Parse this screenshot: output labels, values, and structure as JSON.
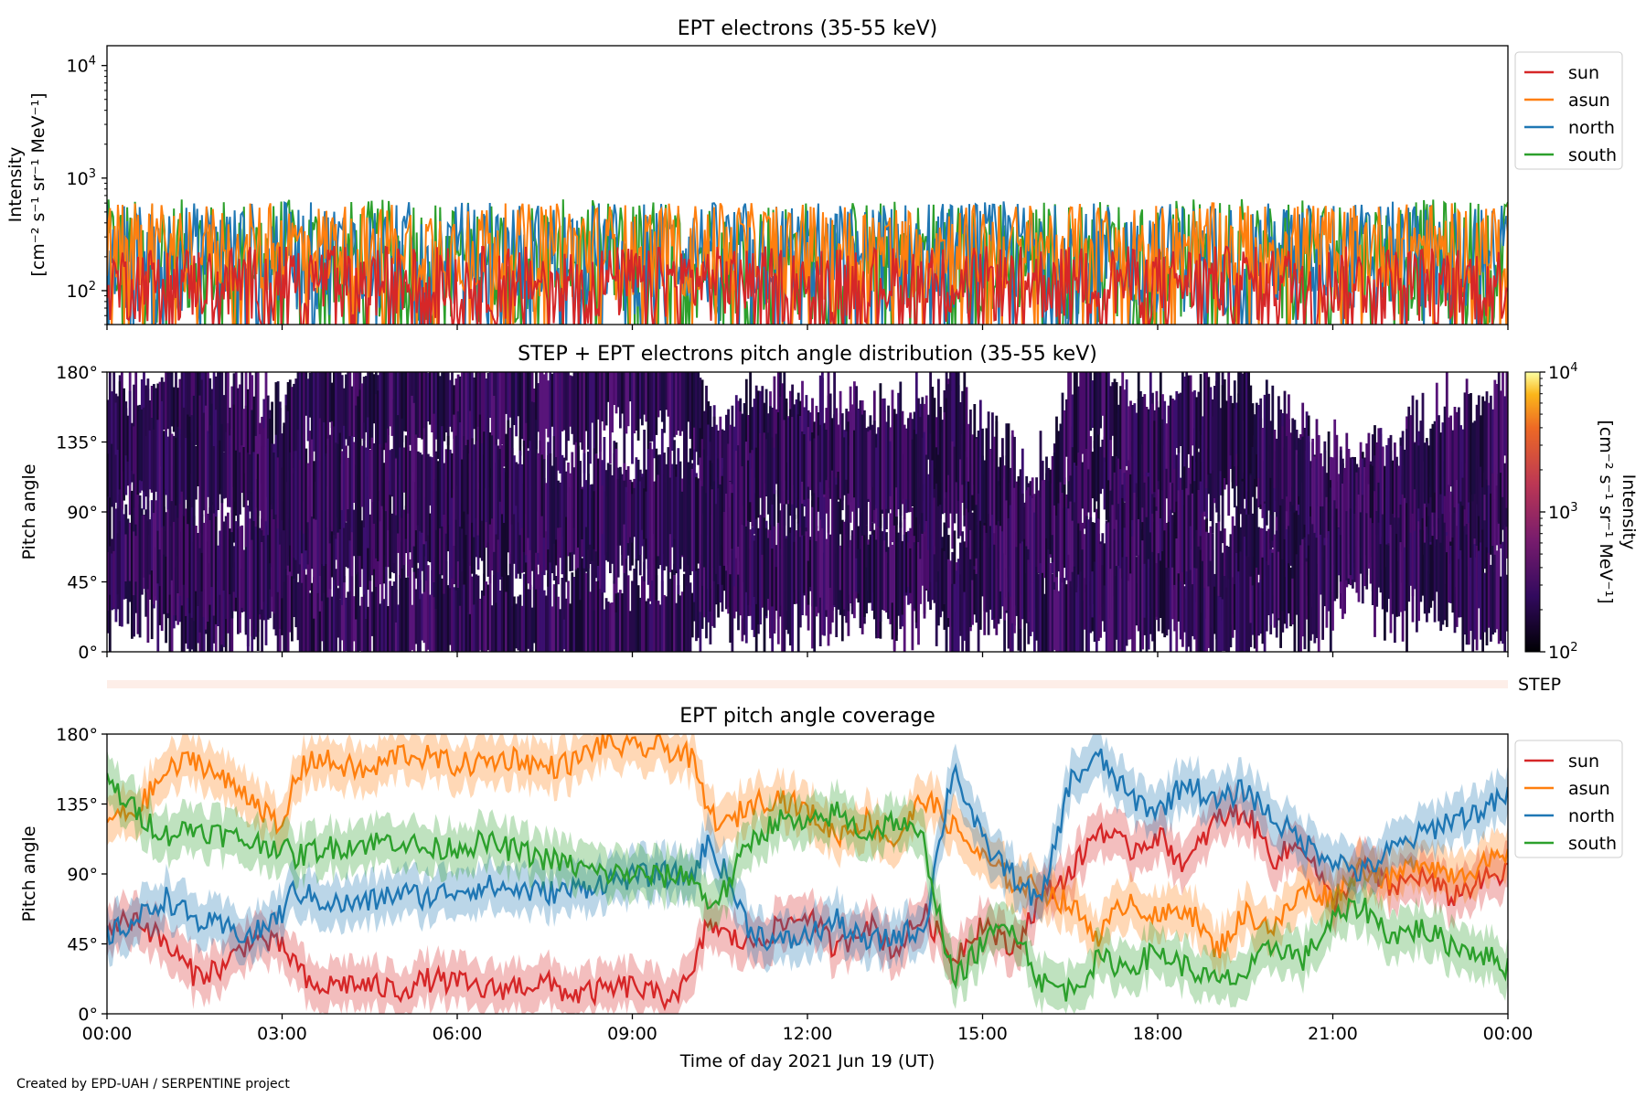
{
  "footer": {
    "credit": "Created by EPD-UAH / SERPENTINE project"
  },
  "xaxis": {
    "label": "Time of day 2021 Jun 19 (UT)",
    "tick_labels": [
      "00:00",
      "03:00",
      "06:00",
      "09:00",
      "12:00",
      "15:00",
      "18:00",
      "21:00",
      "00:00"
    ],
    "range_hours": [
      0,
      24
    ]
  },
  "colors": {
    "sun": "#d62728",
    "asun": "#ff7f0e",
    "north": "#1f77b4",
    "south": "#2ca02c"
  },
  "chart_data": [
    {
      "type": "line",
      "title": "EPT electrons (35-55 keV)",
      "ylabel_line1": "Intensity",
      "ylabel_line2": "[cm⁻² s⁻¹ sr⁻¹ MeV⁻¹]",
      "yscale": "log",
      "ylim": [
        50,
        15000
      ],
      "ytick_values": [
        100,
        1000,
        10000
      ],
      "ytick_labels": [
        {
          "base": "10",
          "exp": "2"
        },
        {
          "base": "10",
          "exp": "3"
        },
        {
          "base": "10",
          "exp": "4"
        }
      ],
      "legend": "outside-top-right",
      "series": [
        {
          "name": "sun",
          "color": "#d62728",
          "typical_range": [
            50,
            250
          ]
        },
        {
          "name": "asun",
          "color": "#ff7f0e",
          "typical_range": [
            80,
            600
          ]
        },
        {
          "name": "north",
          "color": "#1f77b4",
          "typical_range": [
            60,
            620
          ]
        },
        {
          "name": "south",
          "color": "#2ca02c",
          "typical_range": [
            50,
            650
          ]
        }
      ]
    },
    {
      "type": "heatmap",
      "title": "STEP + EPT electrons pitch angle distribution (35-55 keV)",
      "ylabel": "Pitch angle",
      "ylim": [
        0,
        180
      ],
      "ytick_labels": [
        "0°",
        "45°",
        "90°",
        "135°",
        "180°"
      ],
      "colorbar": {
        "label_line1": "Intensity",
        "label_line2": "[cm⁻² s⁻¹ sr⁻¹ MeV⁻¹]",
        "scale": "log",
        "range": [
          100,
          10000
        ],
        "tick_labels": [
          {
            "base": "10",
            "exp": "2"
          },
          {
            "base": "10",
            "exp": "3"
          },
          {
            "base": "10",
            "exp": "4"
          }
        ]
      },
      "step_row_label": "STEP"
    },
    {
      "type": "line",
      "title": "EPT pitch angle coverage",
      "ylabel": "Pitch angle",
      "ylim": [
        0,
        180
      ],
      "ytick_labels": [
        "0°",
        "45°",
        "90°",
        "135°",
        "180°"
      ],
      "legend": "outside-top-right",
      "series": [
        {
          "name": "sun",
          "color": "#d62728",
          "x": [
            0,
            0.5,
            1,
            1.5,
            2,
            2.5,
            3,
            3.2,
            3.5,
            4,
            4.5,
            5,
            5.5,
            6,
            6.5,
            7,
            7.5,
            8,
            8.5,
            9,
            9.5,
            10,
            10.3,
            10.6,
            11,
            11.5,
            12,
            12.5,
            13,
            13.5,
            14,
            14.5,
            15,
            15.5,
            16,
            16.5,
            17,
            17.5,
            18,
            18.5,
            19,
            19.5,
            20,
            20.5,
            21,
            21.5,
            22,
            22.5,
            23,
            23.5,
            24
          ],
          "y": [
            55,
            62,
            45,
            25,
            30,
            50,
            42,
            35,
            15,
            20,
            18,
            15,
            22,
            20,
            15,
            18,
            20,
            12,
            15,
            18,
            10,
            20,
            60,
            50,
            45,
            55,
            65,
            40,
            60,
            40,
            65,
            35,
            60,
            40,
            75,
            90,
            120,
            105,
            115,
            95,
            125,
            130,
            100,
            110,
            70,
            95,
            80,
            90,
            75,
            85,
            90
          ]
        },
        {
          "name": "asun",
          "color": "#ff7f0e",
          "x": [
            0,
            0.5,
            1,
            1.5,
            2,
            2.5,
            3,
            3.2,
            3.5,
            4,
            4.5,
            5,
            5.5,
            6,
            6.5,
            7,
            7.5,
            8,
            8.5,
            9,
            9.5,
            10,
            10.3,
            10.6,
            11,
            11.5,
            12,
            12.5,
            13,
            13.5,
            14,
            14.5,
            15,
            15.5,
            16,
            16.5,
            17,
            17.5,
            18,
            18.5,
            19,
            19.5,
            20,
            20.5,
            21,
            21.5,
            22,
            22.5,
            23,
            23.5,
            24
          ],
          "y": [
            125,
            130,
            155,
            165,
            150,
            140,
            115,
            150,
            165,
            160,
            155,
            168,
            165,
            160,
            162,
            165,
            158,
            162,
            175,
            170,
            172,
            165,
            130,
            120,
            135,
            140,
            130,
            115,
            125,
            110,
            140,
            120,
            100,
            85,
            80,
            70,
            50,
            75,
            60,
            70,
            40,
            65,
            55,
            80,
            75,
            95,
            85,
            100,
            90,
            95,
            100
          ]
        },
        {
          "name": "north",
          "color": "#1f77b4",
          "x": [
            0,
            0.5,
            1,
            1.5,
            2,
            2.5,
            3,
            3.2,
            3.5,
            4,
            4.5,
            5,
            5.5,
            6,
            6.5,
            7,
            7.5,
            8,
            8.5,
            9,
            9.5,
            10,
            10.3,
            10.6,
            11,
            11.5,
            12,
            12.5,
            13,
            13.5,
            14,
            14.5,
            15,
            15.5,
            16,
            16.5,
            17,
            17.5,
            18,
            18.5,
            19,
            19.5,
            20,
            20.5,
            21,
            21.5,
            22,
            22.5,
            23,
            23.5,
            24
          ],
          "y": [
            50,
            60,
            75,
            60,
            55,
            50,
            65,
            80,
            75,
            70,
            72,
            78,
            75,
            80,
            82,
            80,
            78,
            80,
            85,
            88,
            90,
            88,
            110,
            90,
            55,
            45,
            50,
            60,
            45,
            50,
            55,
            160,
            110,
            90,
            70,
            150,
            165,
            140,
            130,
            150,
            135,
            145,
            125,
            110,
            100,
            90,
            105,
            115,
            125,
            130,
            140
          ]
        },
        {
          "name": "south",
          "color": "#2ca02c",
          "x": [
            0,
            0.5,
            1,
            1.5,
            2,
            2.5,
            3,
            3.2,
            3.5,
            4,
            4.5,
            5,
            5.5,
            6,
            6.5,
            7,
            7.5,
            8,
            8.5,
            9,
            9.5,
            10,
            10.3,
            10.6,
            11,
            11.5,
            12,
            12.5,
            13,
            13.5,
            14,
            14.5,
            15,
            15.5,
            16,
            16.5,
            17,
            17.5,
            18,
            18.5,
            19,
            19.5,
            20,
            20.5,
            21,
            21.5,
            22,
            22.5,
            23,
            23.5,
            24
          ],
          "y": [
            150,
            130,
            115,
            120,
            115,
            110,
            108,
            100,
            105,
            108,
            110,
            112,
            105,
            108,
            110,
            105,
            100,
            95,
            90,
            90,
            88,
            90,
            70,
            80,
            110,
            125,
            120,
            130,
            115,
            125,
            110,
            20,
            45,
            60,
            20,
            15,
            35,
            30,
            40,
            30,
            20,
            25,
            45,
            35,
            60,
            70,
            50,
            55,
            45,
            40,
            30
          ]
        }
      ]
    }
  ]
}
